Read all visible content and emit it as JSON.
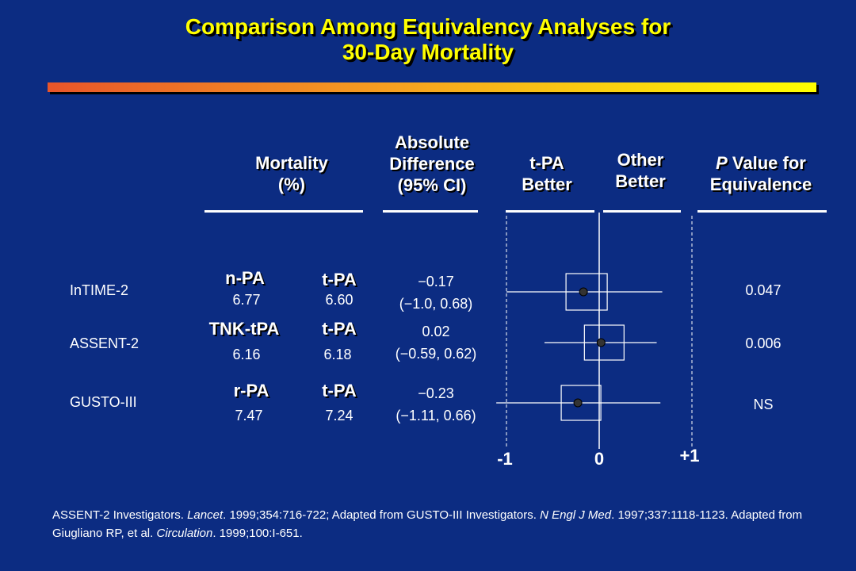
{
  "title_line1": "Comparison Among Equivalency Analyses for",
  "title_line2": "30-Day Mortality",
  "headers": {
    "mortality_1": "Mortality",
    "mortality_2": "(%)",
    "absdiff_1": "Absolute",
    "absdiff_2": "Difference",
    "absdiff_3": "(95% CI)",
    "tpa_better_1": "t-PA",
    "tpa_better_2": "Better",
    "other_better_1": "Other",
    "other_better_2": "Better",
    "pvalue_1_italic": "P",
    "pvalue_1_rest": " Value for",
    "pvalue_2": "Equivalence"
  },
  "rows": [
    {
      "trial": "InTIME-2",
      "drug_a": "n-PA",
      "mort_a": "6.77",
      "drug_b": "t-PA",
      "mort_b": "6.60",
      "diff": "−0.17",
      "ci": "(−1.0, 0.68)",
      "p": "0.047"
    },
    {
      "trial": "ASSENT-2",
      "drug_a": "TNK-tPA",
      "mort_a": "6.16",
      "drug_b": "t-PA",
      "mort_b": "6.18",
      "diff": "0.02",
      "ci": "(−0.59, 0.62)",
      "p": "0.006"
    },
    {
      "trial": "GUSTO-III",
      "drug_a": "r-PA",
      "mort_a": "7.47",
      "drug_b": "t-PA",
      "mort_b": "7.24",
      "diff": "−0.23",
      "ci": "(−1.11, 0.66)",
      "p": "NS"
    }
  ],
  "chart_data": {
    "type": "scatter",
    "subtype": "forest-plot",
    "x_ticks": [
      "-1",
      "0",
      "+1"
    ],
    "xlim": [
      -1,
      1
    ],
    "reference_line": 0,
    "equivalence_bounds": [
      -1,
      1
    ],
    "series": [
      {
        "label": "InTIME-2",
        "estimate": -0.17,
        "ci_low": -1.0,
        "ci_high": 0.68
      },
      {
        "label": "ASSENT-2",
        "estimate": 0.02,
        "ci_low": -0.59,
        "ci_high": 0.62
      },
      {
        "label": "GUSTO-III",
        "estimate": -0.23,
        "ci_low": -1.11,
        "ci_high": 0.66
      }
    ]
  },
  "footer": {
    "p1a": "ASSENT-2 Investigators. ",
    "p1b": "Lancet",
    "p1c": ". 1999;354:716-722;  Adapted from GUSTO-III Investigators. ",
    "p1d": "N Engl J Med",
    "p1e": ". 1997;337:1118-1123.  Adapted from Giugliano RP, et al. ",
    "p1f": "Circulation",
    "p1g": ". 1999;100:I-651."
  },
  "colors": {
    "background": "#0c2c82",
    "title": "#ffff00",
    "text": "#ffffff",
    "marker": "#333333"
  }
}
